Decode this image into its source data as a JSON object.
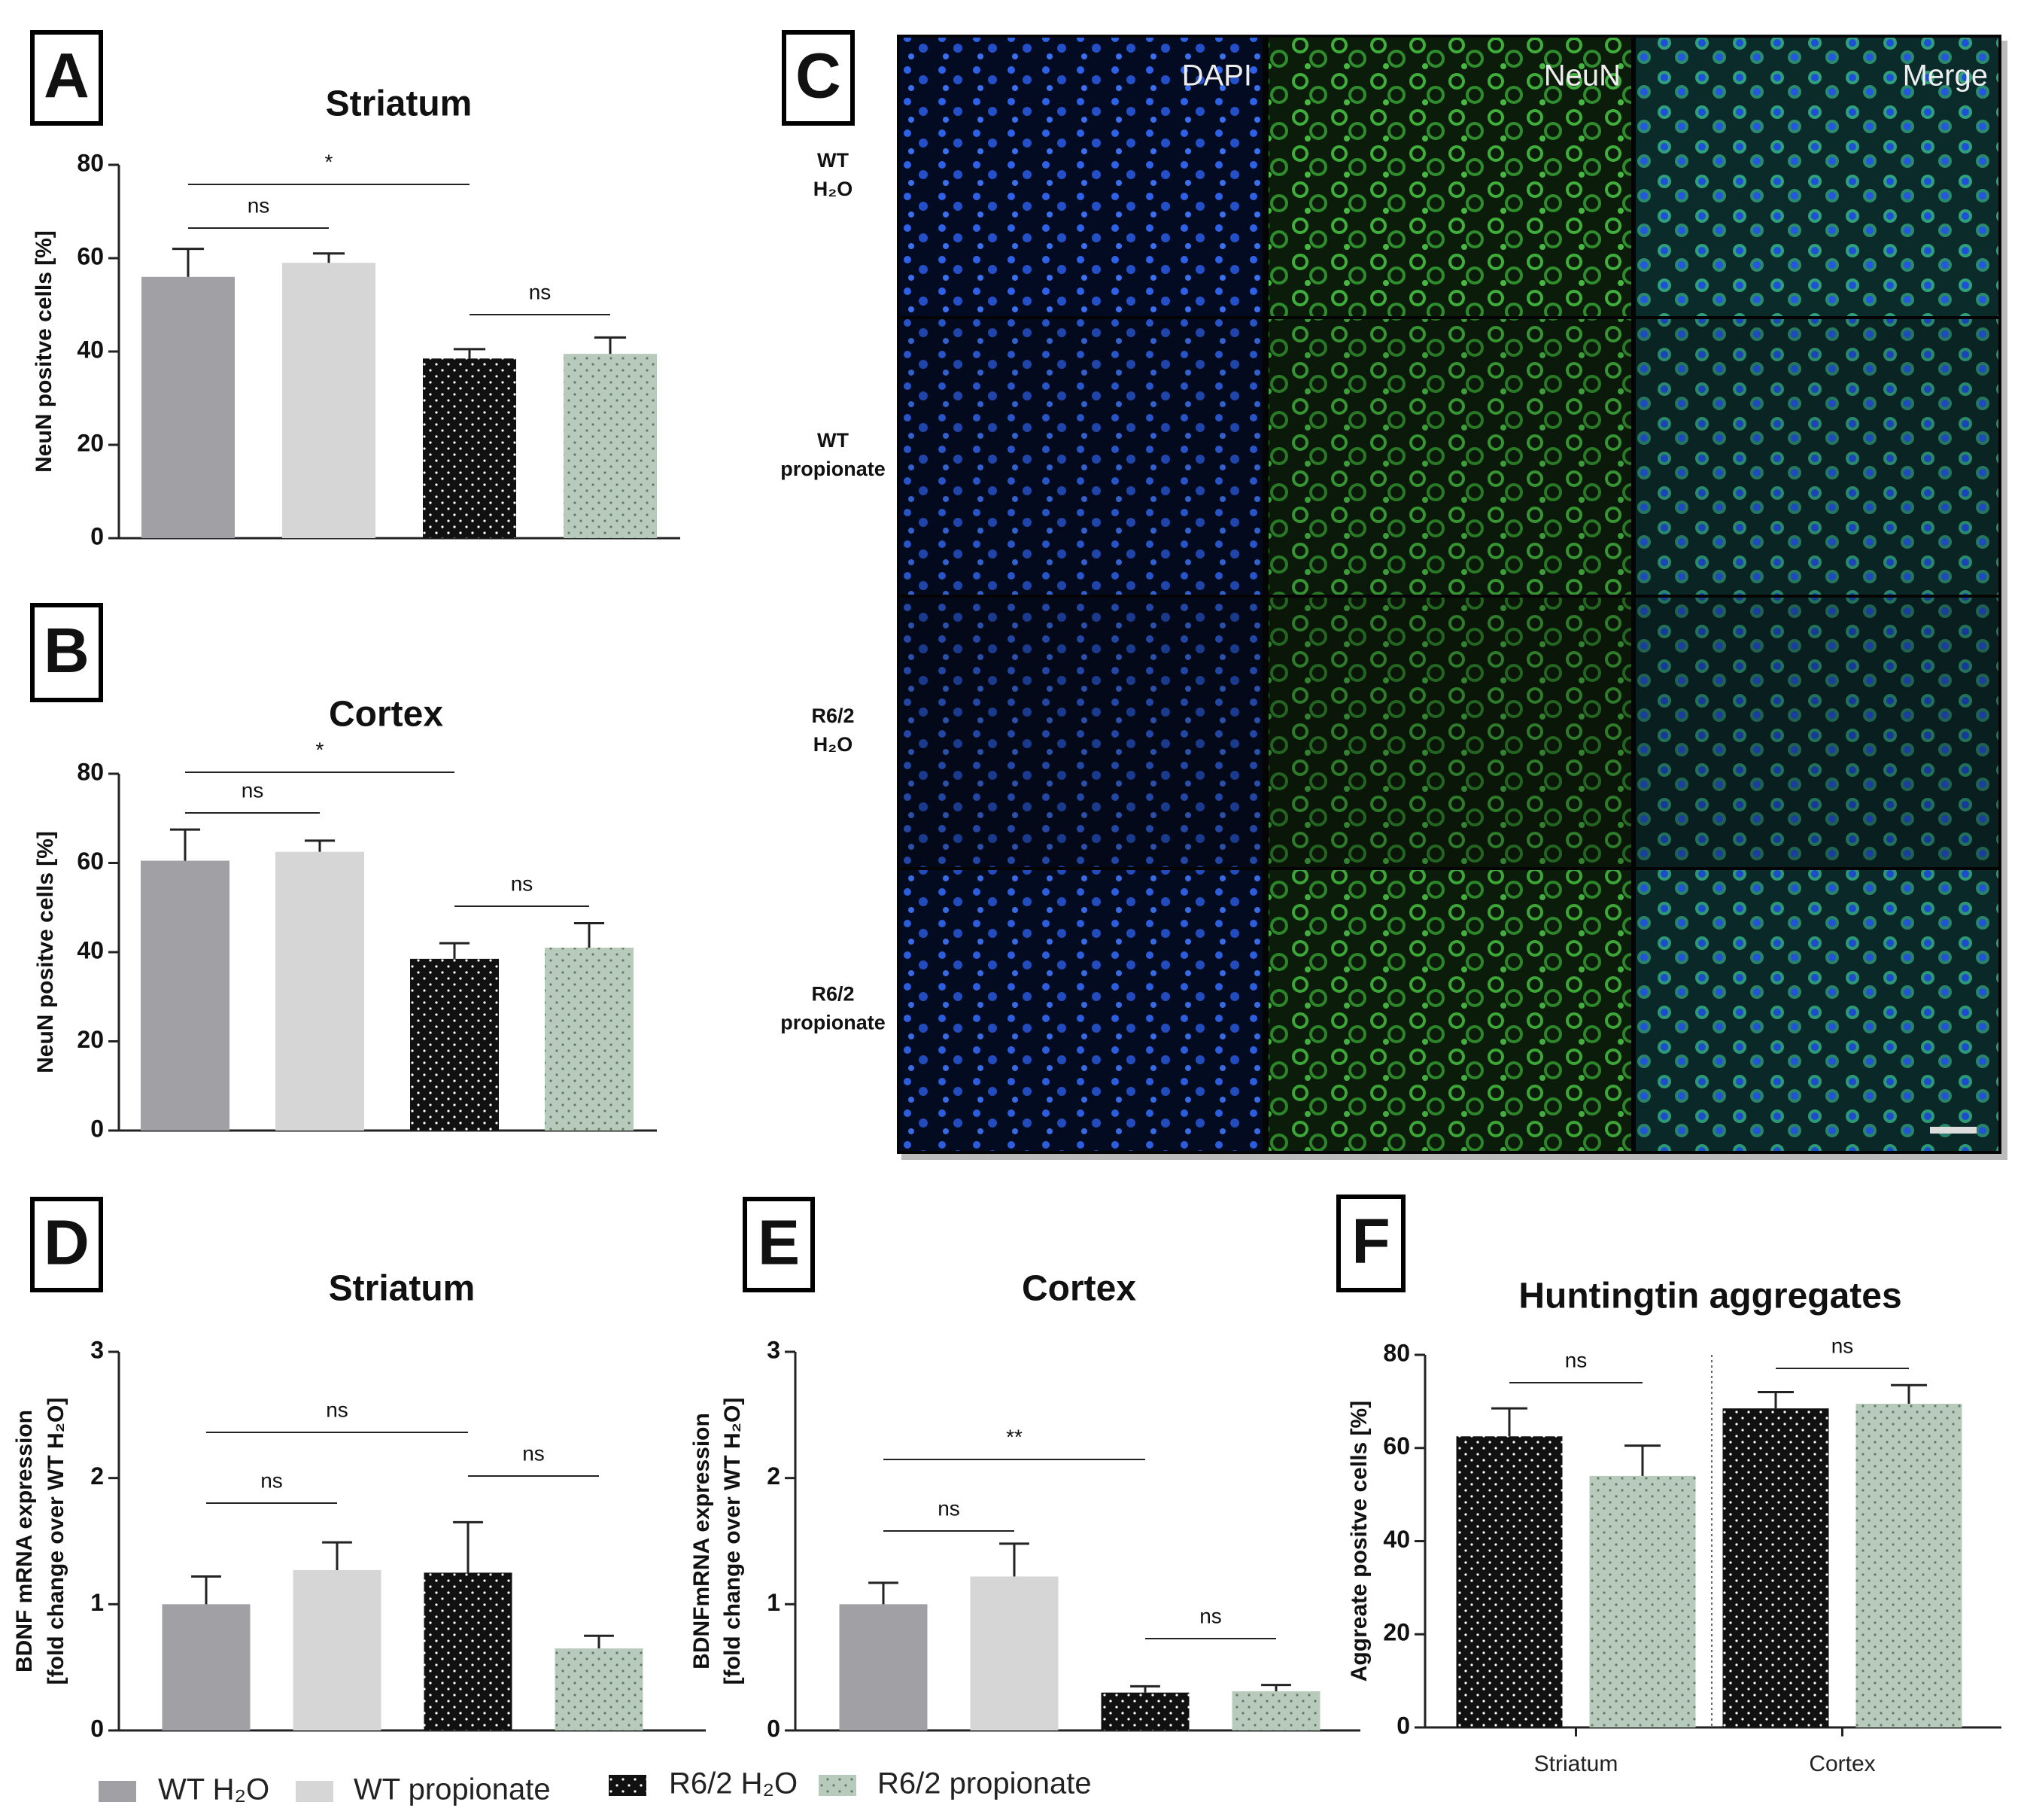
{
  "chart_data": [
    {
      "type": "bar",
      "panel": "A",
      "title": "Striatum",
      "ylabel": [
        "NeuN positve cells [%]"
      ],
      "categories": [
        null,
        null,
        null,
        null
      ],
      "values": [
        56,
        59,
        38.5,
        39.5
      ],
      "errors": [
        6,
        2,
        2,
        3.5
      ],
      "colors": [
        "#a0a0a5",
        "#d6d6d6",
        "#111111",
        "#b7cabb"
      ],
      "patterns": [
        "none",
        "none",
        "dots",
        "dots"
      ],
      "ylim": [
        0,
        80
      ],
      "yticks": [
        0,
        20,
        40,
        60,
        80
      ],
      "comparisons": [
        {
          "groups": [
            0,
            1
          ],
          "label": "ns"
        },
        {
          "groups": [
            0,
            2
          ],
          "label": "*"
        },
        {
          "groups": [
            2,
            3
          ],
          "label": "ns"
        }
      ]
    },
    {
      "type": "bar",
      "panel": "B",
      "title": "Cortex",
      "ylabel": [
        "NeuN positve cells [%]"
      ],
      "categories": [
        null,
        null,
        null,
        null
      ],
      "values": [
        60.5,
        62.5,
        38.5,
        41
      ],
      "errors": [
        7,
        2.5,
        3.5,
        5.5
      ],
      "colors": [
        "#a0a0a5",
        "#d6d6d6",
        "#111111",
        "#b7cabb"
      ],
      "patterns": [
        "none",
        "none",
        "dots",
        "dots"
      ],
      "ylim": [
        0,
        80
      ],
      "yticks": [
        0,
        20,
        40,
        60,
        80
      ],
      "comparisons": [
        {
          "groups": [
            0,
            1
          ],
          "label": "ns"
        },
        {
          "groups": [
            0,
            2
          ],
          "label": "*"
        },
        {
          "groups": [
            2,
            3
          ],
          "label": "ns"
        }
      ]
    },
    {
      "type": "bar",
      "panel": "D",
      "title": "Striatum",
      "ylabel": [
        "BDNF mRNA expression",
        "[fold change over WT H₂O]"
      ],
      "categories": [
        null,
        null,
        null,
        null
      ],
      "values": [
        1.0,
        1.27,
        1.25,
        0.65
      ],
      "errors": [
        0.22,
        0.22,
        0.4,
        0.1
      ],
      "colors": [
        "#a0a0a5",
        "#d6d6d6",
        "#111111",
        "#b7cabb"
      ],
      "patterns": [
        "none",
        "none",
        "dots",
        "dots"
      ],
      "ylim": [
        0,
        3
      ],
      "yticks": [
        0,
        1,
        2,
        3
      ],
      "comparisons": [
        {
          "groups": [
            0,
            1
          ],
          "label": "ns"
        },
        {
          "groups": [
            0,
            2
          ],
          "label": "ns"
        },
        {
          "groups": [
            2,
            3
          ],
          "label": "ns"
        }
      ]
    },
    {
      "type": "bar",
      "panel": "E",
      "title": "Cortex",
      "ylabel": [
        "BDNFmRNA expression",
        "[fold change over WT H₂O]"
      ],
      "categories": [
        null,
        null,
        null,
        null
      ],
      "values": [
        1.0,
        1.22,
        0.3,
        0.31
      ],
      "errors": [
        0.17,
        0.26,
        0.05,
        0.05
      ],
      "colors": [
        "#a0a0a5",
        "#d6d6d6",
        "#111111",
        "#b7cabb"
      ],
      "patterns": [
        "none",
        "none",
        "dots",
        "dots"
      ],
      "ylim": [
        0,
        3
      ],
      "yticks": [
        0,
        1,
        2,
        3
      ],
      "comparisons": [
        {
          "groups": [
            0,
            1
          ],
          "label": "ns"
        },
        {
          "groups": [
            0,
            2
          ],
          "label": "**"
        },
        {
          "groups": [
            2,
            3
          ],
          "label": "ns"
        }
      ]
    },
    {
      "type": "grouped_bar",
      "panel": "F",
      "title": "Huntingtin aggregates",
      "ylabel": [
        "Aggreate positve cells [%]"
      ],
      "categories": [
        "Striatum",
        "Cortex"
      ],
      "series": [
        {
          "color": "#111111",
          "pattern": "dots",
          "values": [
            62.5,
            68.5
          ],
          "errors": [
            6,
            3.5
          ]
        },
        {
          "color": "#b7cabb",
          "pattern": "dots",
          "values": [
            54,
            69.5
          ],
          "errors": [
            6.5,
            4
          ]
        }
      ],
      "ylim": [
        0,
        80
      ],
      "yticks": [
        0,
        20,
        40,
        60,
        80
      ],
      "comparisons": [
        {
          "groups": [
            0,
            1
          ],
          "label": "ns"
        },
        {
          "groups": [
            2,
            3
          ],
          "label": "ns"
        }
      ]
    }
  ],
  "legend": [
    {
      "name": "WT H₂O",
      "color": "#a0a0a5",
      "pattern": "none"
    },
    {
      "name": "WT propionate",
      "color": "#d6d6d6",
      "pattern": "none"
    },
    {
      "name": "R6/2 H₂O",
      "color": "#111111",
      "pattern": "dots"
    },
    {
      "name": "R6/2 propionate",
      "color": "#b7cabb",
      "pattern": "dots"
    }
  ],
  "image_panel": {
    "panel": "C",
    "columns": [
      "DAPI",
      "NeuN",
      "Merge"
    ],
    "rows": [
      [
        "WT",
        "H₂O"
      ],
      [
        "WT",
        "propionate"
      ],
      [
        "R6/2",
        "H₂O"
      ],
      [
        "R6/2",
        "propionate"
      ]
    ]
  }
}
